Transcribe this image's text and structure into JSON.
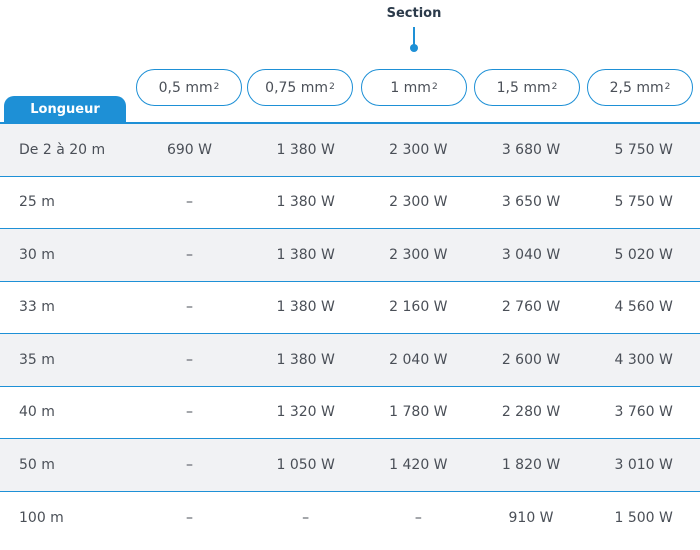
{
  "header": {
    "section_title": "Section",
    "length_tab": "Longueur",
    "sections": [
      {
        "value": "0,5 mm",
        "exp": "2"
      },
      {
        "value": "0,75 mm",
        "exp": "2"
      },
      {
        "value": "1 mm",
        "exp": "2"
      },
      {
        "value": "1,5 mm",
        "exp": "2"
      },
      {
        "value": "2,5 mm",
        "exp": "2"
      }
    ]
  },
  "rows": [
    {
      "length": "De 2 à 20 m",
      "values": [
        "690 W",
        "1 380 W",
        "2 300 W",
        "3 680 W",
        "5 750 W"
      ]
    },
    {
      "length": "25 m",
      "values": [
        "–",
        "1 380 W",
        "2 300 W",
        "3 650 W",
        "5 750 W"
      ]
    },
    {
      "length": "30 m",
      "values": [
        "–",
        "1 380 W",
        "2 300 W",
        "3 040 W",
        "5 020 W"
      ]
    },
    {
      "length": "33 m",
      "values": [
        "–",
        "1 380 W",
        "2 160 W",
        "2 760 W",
        "4 560 W"
      ]
    },
    {
      "length": "35 m",
      "values": [
        "–",
        "1 380 W",
        "2 040 W",
        "2 600 W",
        "4 300 W"
      ]
    },
    {
      "length": "40 m",
      "values": [
        "–",
        "1 320 W",
        "1 780 W",
        "2 280 W",
        "3 760 W"
      ]
    },
    {
      "length": "50 m",
      "values": [
        "–",
        "1 050 W",
        "1 420 W",
        "1 820 W",
        "3 010 W"
      ]
    },
    {
      "length": "100 m",
      "values": [
        "–",
        "–",
        "–",
        "910 W",
        "1 500 W"
      ]
    }
  ],
  "colors": {
    "accent": "#1e90d6",
    "row_shade": "#f1f2f4",
    "text": "#4a4f57"
  }
}
